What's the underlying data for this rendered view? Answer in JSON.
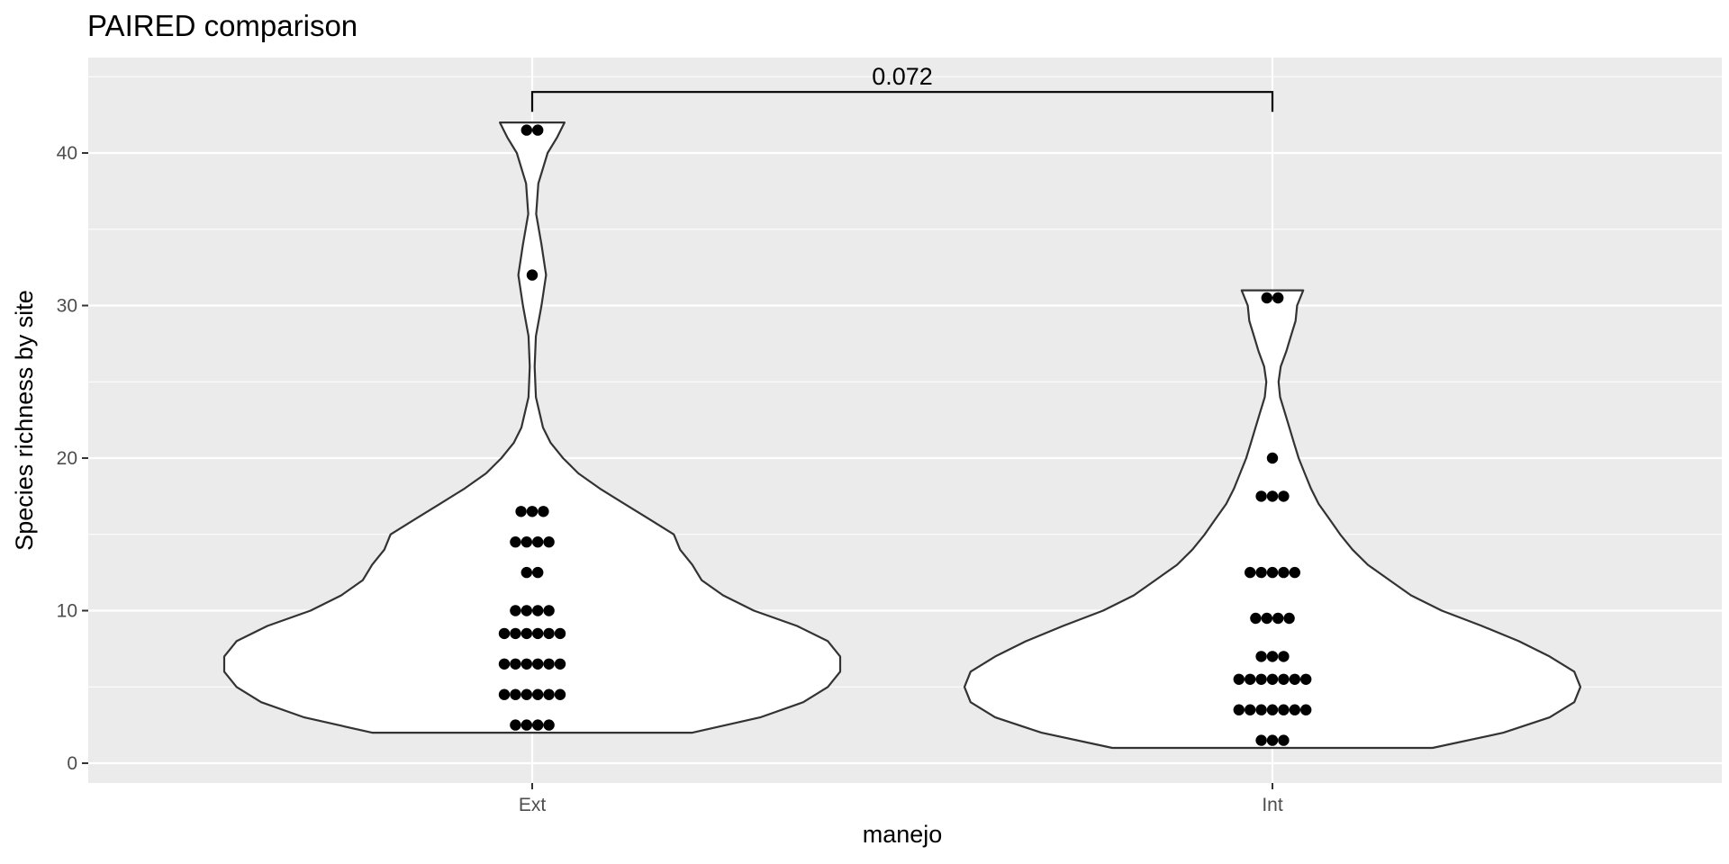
{
  "chart_data": {
    "type": "violin",
    "title": "PAIRED comparison",
    "xlabel": "manejo",
    "ylabel": "Species richness by site",
    "categories": [
      "Ext",
      "Int"
    ],
    "ylim": [
      -1.5,
      46
    ],
    "y_ticks": [
      0,
      10,
      20,
      30,
      40
    ],
    "y_tick_labels": [
      "0",
      "10",
      "20",
      "30",
      "40"
    ],
    "grid": true,
    "background": "#ebebeb",
    "gridline_color": "#ffffff",
    "violin_fill": "#ffffff",
    "violin_stroke": "#333333",
    "point_color": "#000000",
    "violins": [
      {
        "category": "Ext",
        "min": 2,
        "max": 42,
        "density_profile": [
          [
            2,
            0.52
          ],
          [
            3,
            0.74
          ],
          [
            4,
            0.88
          ],
          [
            5,
            0.96
          ],
          [
            6,
            1.0
          ],
          [
            7,
            1.0
          ],
          [
            8,
            0.96
          ],
          [
            9,
            0.86
          ],
          [
            10,
            0.72
          ],
          [
            11,
            0.62
          ],
          [
            12,
            0.55
          ],
          [
            13,
            0.52
          ],
          [
            14,
            0.48
          ],
          [
            15,
            0.46
          ],
          [
            16,
            0.38
          ],
          [
            17,
            0.3
          ],
          [
            18,
            0.22
          ],
          [
            19,
            0.15
          ],
          [
            20,
            0.1
          ],
          [
            21,
            0.06
          ],
          [
            22,
            0.035
          ],
          [
            24,
            0.012
          ],
          [
            26,
            0.008
          ],
          [
            28,
            0.012
          ],
          [
            30,
            0.03
          ],
          [
            32,
            0.045
          ],
          [
            34,
            0.03
          ],
          [
            36,
            0.013
          ],
          [
            38,
            0.02
          ],
          [
            40,
            0.05
          ],
          [
            41,
            0.08
          ],
          [
            42,
            0.105
          ]
        ],
        "points": [
          {
            "y": 41.5,
            "count": 2
          },
          {
            "y": 32,
            "count": 1
          },
          {
            "y": 16.5,
            "count": 3
          },
          {
            "y": 14.5,
            "count": 4
          },
          {
            "y": 12.5,
            "count": 2
          },
          {
            "y": 10,
            "count": 4
          },
          {
            "y": 8.5,
            "count": 6
          },
          {
            "y": 6.5,
            "count": 6
          },
          {
            "y": 4.5,
            "count": 6
          },
          {
            "y": 2.5,
            "count": 4
          }
        ]
      },
      {
        "category": "Int",
        "min": 1,
        "max": 31,
        "density_profile": [
          [
            1,
            0.52
          ],
          [
            2,
            0.75
          ],
          [
            3,
            0.9
          ],
          [
            4,
            0.98
          ],
          [
            5,
            1.0
          ],
          [
            6,
            0.98
          ],
          [
            7,
            0.9
          ],
          [
            8,
            0.8
          ],
          [
            9,
            0.68
          ],
          [
            10,
            0.55
          ],
          [
            11,
            0.45
          ],
          [
            12,
            0.38
          ],
          [
            13,
            0.31
          ],
          [
            14,
            0.26
          ],
          [
            15,
            0.22
          ],
          [
            16,
            0.185
          ],
          [
            17,
            0.15
          ],
          [
            18,
            0.125
          ],
          [
            19,
            0.105
          ],
          [
            20,
            0.085
          ],
          [
            21,
            0.07
          ],
          [
            22,
            0.055
          ],
          [
            23,
            0.04
          ],
          [
            24,
            0.025
          ],
          [
            25,
            0.02
          ],
          [
            26,
            0.027
          ],
          [
            27,
            0.045
          ],
          [
            28,
            0.06
          ],
          [
            29,
            0.075
          ],
          [
            30,
            0.08
          ],
          [
            31,
            0.1
          ]
        ],
        "points": [
          {
            "y": 30.5,
            "count": 2
          },
          {
            "y": 20,
            "count": 1
          },
          {
            "y": 17.5,
            "count": 3
          },
          {
            "y": 12.5,
            "count": 5
          },
          {
            "y": 9.5,
            "count": 4
          },
          {
            "y": 7,
            "count": 3
          },
          {
            "y": 5.5,
            "count": 7
          },
          {
            "y": 3.5,
            "count": 7
          },
          {
            "y": 1.5,
            "count": 3
          }
        ]
      }
    ],
    "annotations": [
      {
        "type": "bracket",
        "from": "Ext",
        "to": "Int",
        "y": 44,
        "label": "0.072"
      }
    ]
  }
}
